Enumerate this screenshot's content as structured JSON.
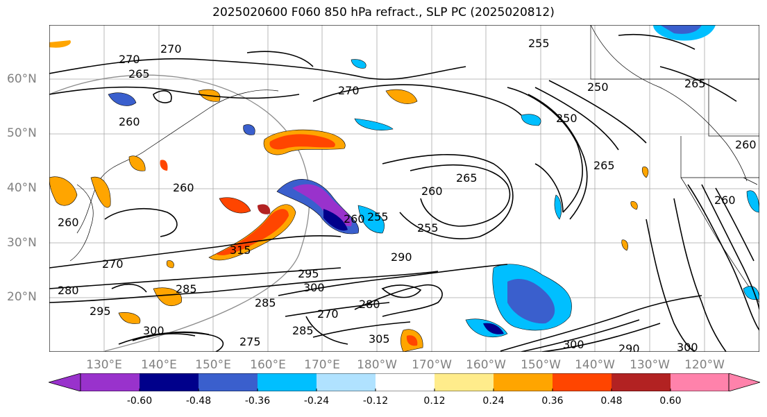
{
  "title": "2025020600 F060 850 hPa refract., SLP PC (2025020812)",
  "lat_labels": [
    "60°N",
    "50°N",
    "40°N",
    "30°N",
    "20°N"
  ],
  "lon_labels": [
    "130°E",
    "140°E",
    "150°E",
    "160°E",
    "170°E",
    "180°W",
    "170°W",
    "160°W",
    "150°W",
    "140°W",
    "130°W",
    "120°W"
  ],
  "colorbar": {
    "ticks": [
      "-0.60",
      "-0.48",
      "-0.36",
      "-0.24",
      "-0.12",
      "0.12",
      "0.24",
      "0.36",
      "0.48",
      "0.60"
    ],
    "colors": [
      "#9932cc",
      "#00008b",
      "#3a5fcd",
      "#00bfff",
      "#b0e2ff",
      "#ffffff",
      "#ffec8b",
      "#ffa500",
      "#ff4500",
      "#b22222",
      "#ff82ab"
    ]
  },
  "contour_labels": [
    "270",
    "270",
    "265",
    "260",
    "260",
    "260",
    "270",
    "270",
    "280",
    "285",
    "295",
    "295",
    "300",
    "285",
    "280",
    "270",
    "285",
    "275",
    "305",
    "300",
    "260",
    "255",
    "265",
    "260",
    "255",
    "250",
    "250",
    "255",
    "265",
    "290",
    "260",
    "260",
    "265",
    "290",
    "300",
    "300",
    "315"
  ],
  "fill_colors": {
    "purple": "#9932cc",
    "navy": "#00008b",
    "blue": "#3a5fcd",
    "cyan": "#00bfff",
    "lightblue": "#b0e2ff",
    "yellow": "#ffec8b",
    "orange": "#ffa500",
    "redorange": "#ff4500",
    "firebrick": "#b22222",
    "pink": "#ff82ab"
  }
}
